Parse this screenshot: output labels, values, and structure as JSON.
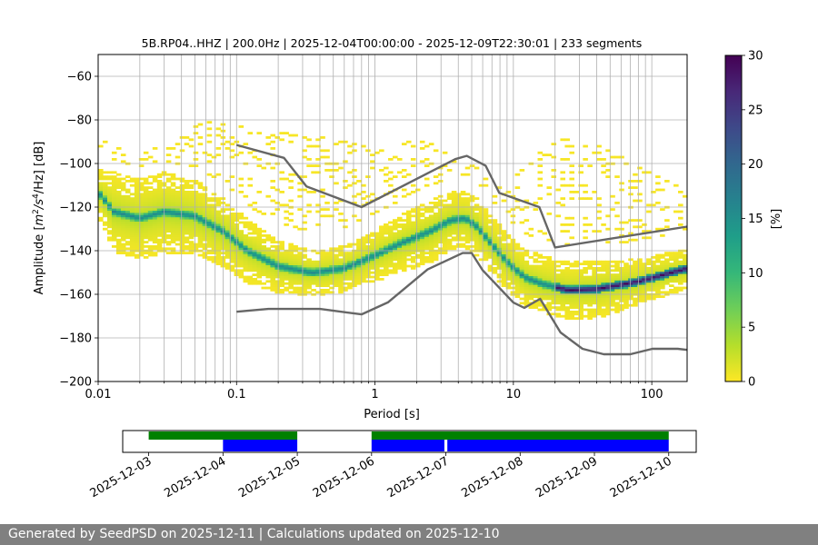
{
  "chart_data": {
    "type": "heatmap",
    "title": "5B.RP04..HHZ | 200.0Hz | 2025-12-04T00:00:00 - 2025-12-09T22:30:01 | 233 segments",
    "xlabel": "Period [s]",
    "ylabel_parts": [
      "Amplitude [",
      "m",
      "2",
      "/",
      "s",
      "4",
      "/Hz] [dB]"
    ],
    "xscale": "log",
    "xlim": [
      0.01,
      180
    ],
    "ylim": [
      -200,
      -50
    ],
    "x_tick_labels": [
      "0.01",
      "0.1",
      "1",
      "10",
      "100"
    ],
    "x_tick_values": [
      0.01,
      0.1,
      1,
      10,
      100
    ],
    "y_tick_labels": [
      "−60",
      "−80",
      "−100",
      "−120",
      "−140",
      "−160",
      "−180",
      "−200"
    ],
    "y_tick_values": [
      -60,
      -80,
      -100,
      -120,
      -140,
      -160,
      -180,
      -200
    ],
    "grid": true,
    "colorbar": {
      "label": "[%]",
      "range": [
        0,
        30
      ],
      "tick_labels": [
        "0",
        "5",
        "10",
        "15",
        "20",
        "25",
        "30"
      ],
      "tick_values": [
        0,
        5,
        10,
        15,
        20,
        25,
        30
      ],
      "colormap": [
        "#fde725",
        "#b5de2b",
        "#6ece58",
        "#35b779",
        "#1f9e89",
        "#26828e",
        "#31688e",
        "#3e4989",
        "#482878",
        "#440154"
      ]
    },
    "nhnm": {
      "name": "NHNM",
      "color": "#666666",
      "x": [
        0.1,
        0.22,
        0.32,
        0.8,
        3.8,
        4.6,
        6.3,
        7.9,
        15.4,
        20,
        354.8
      ],
      "y": [
        -91.5,
        -97.4,
        -110.5,
        -120,
        -98,
        -96.5,
        -101,
        -113.5,
        -120,
        -138.5,
        -126
      ]
    },
    "nlnm": {
      "name": "NLNM",
      "color": "#666666",
      "x": [
        0.1,
        0.17,
        0.4,
        0.8,
        1.24,
        2.4,
        4.3,
        5,
        6,
        10,
        12,
        15.6,
        21.9,
        31.6,
        45,
        70,
        101,
        154,
        328
      ],
      "y": [
        -168,
        -166.7,
        -166.7,
        -169.2,
        -163.7,
        -148.6,
        -141.1,
        -141.1,
        -149,
        -163.8,
        -166.2,
        -162.1,
        -177.5,
        -185,
        -187.5,
        -187.5,
        -185,
        -185,
        -187.5
      ]
    },
    "mode_curve": {
      "x": [
        0.01,
        0.013,
        0.02,
        0.03,
        0.05,
        0.08,
        0.12,
        0.2,
        0.35,
        0.6,
        1,
        1.6,
        2.5,
        3.5,
        4.5,
        5.5,
        7,
        9,
        12,
        16,
        25,
        40,
        80,
        180
      ],
      "y": [
        -113,
        -122,
        -125,
        -122,
        -124,
        -131,
        -140,
        -147,
        -150,
        -148,
        -142,
        -136,
        -131,
        -126,
        -125,
        -129,
        -137,
        -145,
        -152,
        -155,
        -158,
        -157.5,
        -154,
        -148
      ]
    },
    "band_width_db": [
      8,
      14,
      14,
      14,
      13,
      12,
      11,
      9,
      8,
      8,
      9,
      10,
      11,
      10,
      10,
      10,
      10,
      10,
      10,
      10,
      10,
      10,
      8,
      7
    ],
    "upper_outliers": {
      "x": [
        0.01,
        0.02,
        0.04,
        0.06,
        0.08,
        0.12,
        0.2,
        0.3,
        0.5,
        0.8,
        1.3,
        2.2,
        3.5,
        4.5,
        6,
        8,
        12,
        18,
        28,
        40,
        80,
        180
      ],
      "y": [
        -88,
        -95,
        -85,
        -80,
        -80,
        -83,
        -86,
        -85,
        -83,
        -90,
        -92,
        -88,
        -96,
        -97,
        -103,
        -110,
        -100,
        -92,
        -86,
        -90,
        -100,
        -113
      ]
    },
    "availability": {
      "dates": [
        "2025-12-03",
        "2025-12-04",
        "2025-12-05",
        "2025-12-06",
        "2025-12-07",
        "2025-12-08",
        "2025-12-09",
        "2025-12-10"
      ],
      "green_color": "#008000",
      "blue_color": "#0000ff",
      "green_spans": [
        [
          3.0,
          5.0
        ],
        [
          6.0,
          10.0
        ]
      ],
      "blue_spans": [
        [
          4.0,
          5.0
        ],
        [
          6.0,
          6.98
        ],
        [
          7.02,
          10.0
        ]
      ],
      "range": [
        2.65,
        10.37
      ]
    }
  },
  "footer": {
    "text": "Generated by SeedPSD on 2025-12-11 | Calculations updated on 2025-12-10"
  }
}
